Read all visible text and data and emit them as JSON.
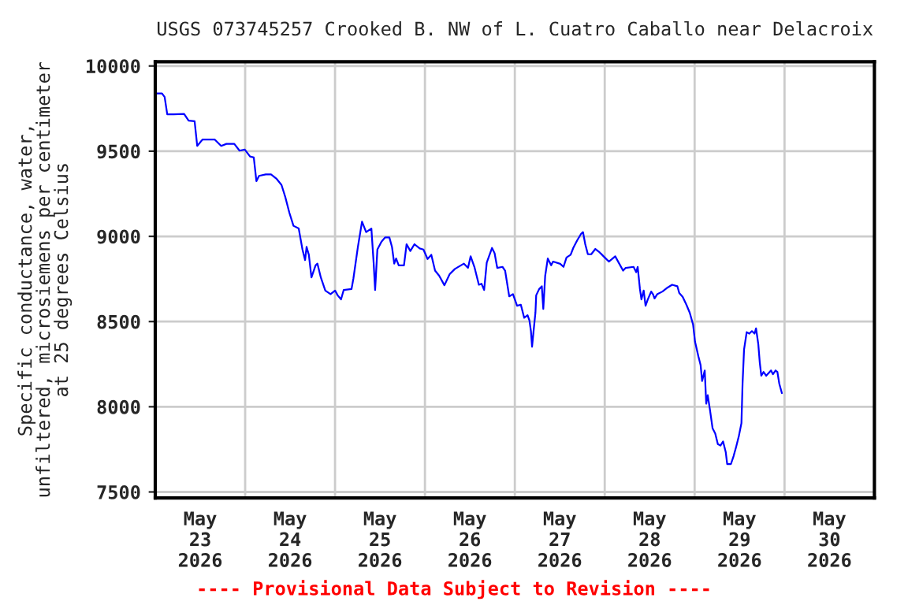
{
  "chart_data": {
    "type": "line",
    "title": "USGS 073745257 Crooked B. NW of L. Cuatro Caballo near Delacroix",
    "ylabel": "Specific conductance, water,\nunfiltered, microsiemens per centimeter\nat 25 degrees Celsius",
    "annotations": [
      "---- Provisional Data Subject to Revision ----"
    ],
    "xlim": [
      "2026-05-23T00:00",
      "2026-05-31T00:00"
    ],
    "xticks": [
      {
        "value": "2026-05-23T00:00",
        "label": null
      },
      {
        "value": "2026-05-23T12:00",
        "label": "May\n23\n2026"
      },
      {
        "value": "2026-05-24T00:00",
        "label": null
      },
      {
        "value": "2026-05-24T12:00",
        "label": "May\n24\n2026"
      },
      {
        "value": "2026-05-25T00:00",
        "label": null
      },
      {
        "value": "2026-05-25T12:00",
        "label": "May\n25\n2026"
      },
      {
        "value": "2026-05-26T00:00",
        "label": null
      },
      {
        "value": "2026-05-26T12:00",
        "label": "May\n26\n2026"
      },
      {
        "value": "2026-05-27T00:00",
        "label": null
      },
      {
        "value": "2026-05-27T12:00",
        "label": "May\n27\n2026"
      },
      {
        "value": "2026-05-28T00:00",
        "label": null
      },
      {
        "value": "2026-05-28T12:00",
        "label": "May\n28\n2026"
      },
      {
        "value": "2026-05-29T00:00",
        "label": null
      },
      {
        "value": "2026-05-29T12:00",
        "label": "May\n29\n2026"
      },
      {
        "value": "2026-05-30T00:00",
        "label": null
      },
      {
        "value": "2026-05-30T12:00",
        "label": "May\n30\n2026"
      },
      {
        "value": "2026-05-31T00:00",
        "label": null
      }
    ],
    "ylim": [
      7465,
      10025
    ],
    "yticks": [
      7500,
      8000,
      8500,
      9000,
      9500,
      10000
    ],
    "grid": true,
    "marker": "none",
    "line_style": "solid",
    "series": [
      {
        "color": "#0000ff",
        "x": [
          "2026-05-23T00:00",
          "2026-05-23T01:48",
          "2026-05-23T02:30",
          "2026-05-23T03:12",
          "2026-05-23T04:54",
          "2026-05-23T07:42",
          "2026-05-23T08:54",
          "2026-05-23T10:30",
          "2026-05-23T11:12",
          "2026-05-23T12:36",
          "2026-05-23T15:54",
          "2026-05-23T17:36",
          "2026-05-23T19:00",
          "2026-05-23T21:06",
          "2026-05-23T22:30",
          "2026-05-23T23:54",
          "2026-05-24T01:18",
          "2026-05-24T02:18",
          "2026-05-24T03:00",
          "2026-05-24T03:42",
          "2026-05-24T05:30",
          "2026-05-24T06:54",
          "2026-05-24T08:18",
          "2026-05-24T09:42",
          "2026-05-24T10:42",
          "2026-05-24T11:48",
          "2026-05-24T12:54",
          "2026-05-24T14:18",
          "2026-05-24T15:18",
          "2026-05-24T16:00",
          "2026-05-24T16:24",
          "2026-05-24T17:00",
          "2026-05-24T17:42",
          "2026-05-24T18:48",
          "2026-05-24T19:18",
          "2026-05-24T20:12",
          "2026-05-24T21:24",
          "2026-05-24T22:48",
          "2026-05-25T00:00",
          "2026-05-25T00:42",
          "2026-05-25T01:36",
          "2026-05-25T02:18",
          "2026-05-25T04:24",
          "2026-05-25T04:54",
          "2026-05-25T06:06",
          "2026-05-25T07:12",
          "2026-05-25T08:18",
          "2026-05-25T09:42",
          "2026-05-25T10:18",
          "2026-05-25T10:42",
          "2026-05-25T11:18",
          "2026-05-25T12:24",
          "2026-05-25T13:24",
          "2026-05-25T14:30",
          "2026-05-25T15:12",
          "2026-05-25T15:48",
          "2026-05-25T16:18",
          "2026-05-25T17:00",
          "2026-05-25T18:24",
          "2026-05-25T19:06",
          "2026-05-25T20:06",
          "2026-05-25T21:12",
          "2026-05-25T22:36",
          "2026-05-25T23:36",
          "2026-05-26T00:42",
          "2026-05-26T01:42",
          "2026-05-26T02:42",
          "2026-05-26T03:48",
          "2026-05-26T05:12",
          "2026-05-26T06:36",
          "2026-05-26T08:00",
          "2026-05-26T10:24",
          "2026-05-26T11:30",
          "2026-05-26T12:12",
          "2026-05-26T13:12",
          "2026-05-26T14:24",
          "2026-05-26T15:06",
          "2026-05-26T15:48",
          "2026-05-26T16:30",
          "2026-05-26T17:54",
          "2026-05-26T18:36",
          "2026-05-26T19:18",
          "2026-05-26T20:42",
          "2026-05-26T21:24",
          "2026-05-26T22:30",
          "2026-05-26T23:30",
          "2026-05-27T00:36",
          "2026-05-27T01:36",
          "2026-05-27T02:30",
          "2026-05-27T03:24",
          "2026-05-27T03:54",
          "2026-05-27T04:18",
          "2026-05-27T04:36",
          "2026-05-27T05:00",
          "2026-05-27T05:30",
          "2026-05-27T05:42",
          "2026-05-27T06:30",
          "2026-05-27T07:12",
          "2026-05-27T07:36",
          "2026-05-27T08:06",
          "2026-05-27T08:48",
          "2026-05-27T09:42",
          "2026-05-27T10:12",
          "2026-05-27T12:06",
          "2026-05-27T13:00",
          "2026-05-27T13:48",
          "2026-05-27T14:54",
          "2026-05-27T15:36",
          "2026-05-27T16:36",
          "2026-05-27T17:42",
          "2026-05-27T18:12",
          "2026-05-27T18:48",
          "2026-05-27T19:30",
          "2026-05-27T20:24",
          "2026-05-27T21:30",
          "2026-05-27T22:36",
          "2026-05-28T00:00",
          "2026-05-28T01:06",
          "2026-05-28T01:48",
          "2026-05-28T02:48",
          "2026-05-28T03:54",
          "2026-05-28T04:54",
          "2026-05-28T05:36",
          "2026-05-28T07:42",
          "2026-05-28T08:24",
          "2026-05-28T08:48",
          "2026-05-28T09:24",
          "2026-05-28T09:48",
          "2026-05-28T10:24",
          "2026-05-28T10:54",
          "2026-05-28T11:30",
          "2026-05-28T12:24",
          "2026-05-28T12:54",
          "2026-05-28T13:18",
          "2026-05-28T14:00",
          "2026-05-28T15:24",
          "2026-05-28T16:48",
          "2026-05-28T18:00",
          "2026-05-28T19:24",
          "2026-05-28T19:54",
          "2026-05-28T20:48",
          "2026-05-28T21:48",
          "2026-05-28T22:42",
          "2026-05-28T23:36",
          "2026-05-29T00:06",
          "2026-05-29T01:00",
          "2026-05-29T01:36",
          "2026-05-29T02:00",
          "2026-05-29T02:42",
          "2026-05-29T03:06",
          "2026-05-29T03:30",
          "2026-05-29T04:06",
          "2026-05-29T04:48",
          "2026-05-29T05:30",
          "2026-05-29T06:12",
          "2026-05-29T06:54",
          "2026-05-29T07:36",
          "2026-05-29T08:18",
          "2026-05-29T08:42",
          "2026-05-29T09:42",
          "2026-05-29T10:24",
          "2026-05-29T11:06",
          "2026-05-29T11:48",
          "2026-05-29T12:30",
          "2026-05-29T12:48",
          "2026-05-29T13:12",
          "2026-05-29T13:54",
          "2026-05-29T14:36",
          "2026-05-29T15:18",
          "2026-05-29T16:00",
          "2026-05-29T16:24",
          "2026-05-29T17:00",
          "2026-05-29T17:24",
          "2026-05-29T17:48",
          "2026-05-29T18:24",
          "2026-05-29T19:06",
          "2026-05-29T20:24",
          "2026-05-29T20:54",
          "2026-05-29T21:36",
          "2026-05-29T22:06",
          "2026-05-29T22:36",
          "2026-05-29T23:18"
        ],
        "values": [
          9839,
          9839,
          9818,
          9716,
          9716,
          9719,
          9679,
          9676,
          9531,
          9568,
          9568,
          9531,
          9543,
          9543,
          9503,
          9509,
          9469,
          9463,
          9324,
          9355,
          9364,
          9364,
          9340,
          9302,
          9232,
          9139,
          9062,
          9046,
          8923,
          8861,
          8938,
          8892,
          8759,
          8830,
          8840,
          8759,
          8682,
          8661,
          8682,
          8654,
          8630,
          8685,
          8691,
          8753,
          8938,
          9086,
          9025,
          9046,
          8846,
          8685,
          8923,
          8969,
          8994,
          8994,
          8938,
          8840,
          8870,
          8830,
          8830,
          8954,
          8914,
          8954,
          8929,
          8923,
          8867,
          8892,
          8799,
          8769,
          8713,
          8778,
          8809,
          8840,
          8815,
          8883,
          8821,
          8716,
          8722,
          8685,
          8846,
          8932,
          8901,
          8815,
          8821,
          8799,
          8648,
          8661,
          8593,
          8599,
          8522,
          8537,
          8506,
          8444,
          8352,
          8444,
          8552,
          8654,
          8691,
          8707,
          8574,
          8768,
          8870,
          8830,
          8852,
          8839,
          8821,
          8876,
          8892,
          8932,
          8975,
          9015,
          9025,
          8954,
          8895,
          8895,
          8926,
          8907,
          8876,
          8852,
          8864,
          8883,
          8839,
          8799,
          8815,
          8821,
          8790,
          8821,
          8691,
          8630,
          8682,
          8593,
          8630,
          8676,
          8660,
          8636,
          8660,
          8676,
          8700,
          8716,
          8707,
          8667,
          8645,
          8599,
          8552,
          8481,
          8383,
          8296,
          8244,
          8151,
          8213,
          8018,
          8068,
          7981,
          7873,
          7843,
          7781,
          7772,
          7796,
          7735,
          7664,
          7664,
          7710,
          7766,
          7827,
          7904,
          8136,
          8336,
          8438,
          8429,
          8444,
          8429,
          8460,
          8367,
          8259,
          8182,
          8204,
          8182,
          8213,
          8191,
          8213,
          8204,
          8136,
          8080
        ]
      }
    ]
  }
}
